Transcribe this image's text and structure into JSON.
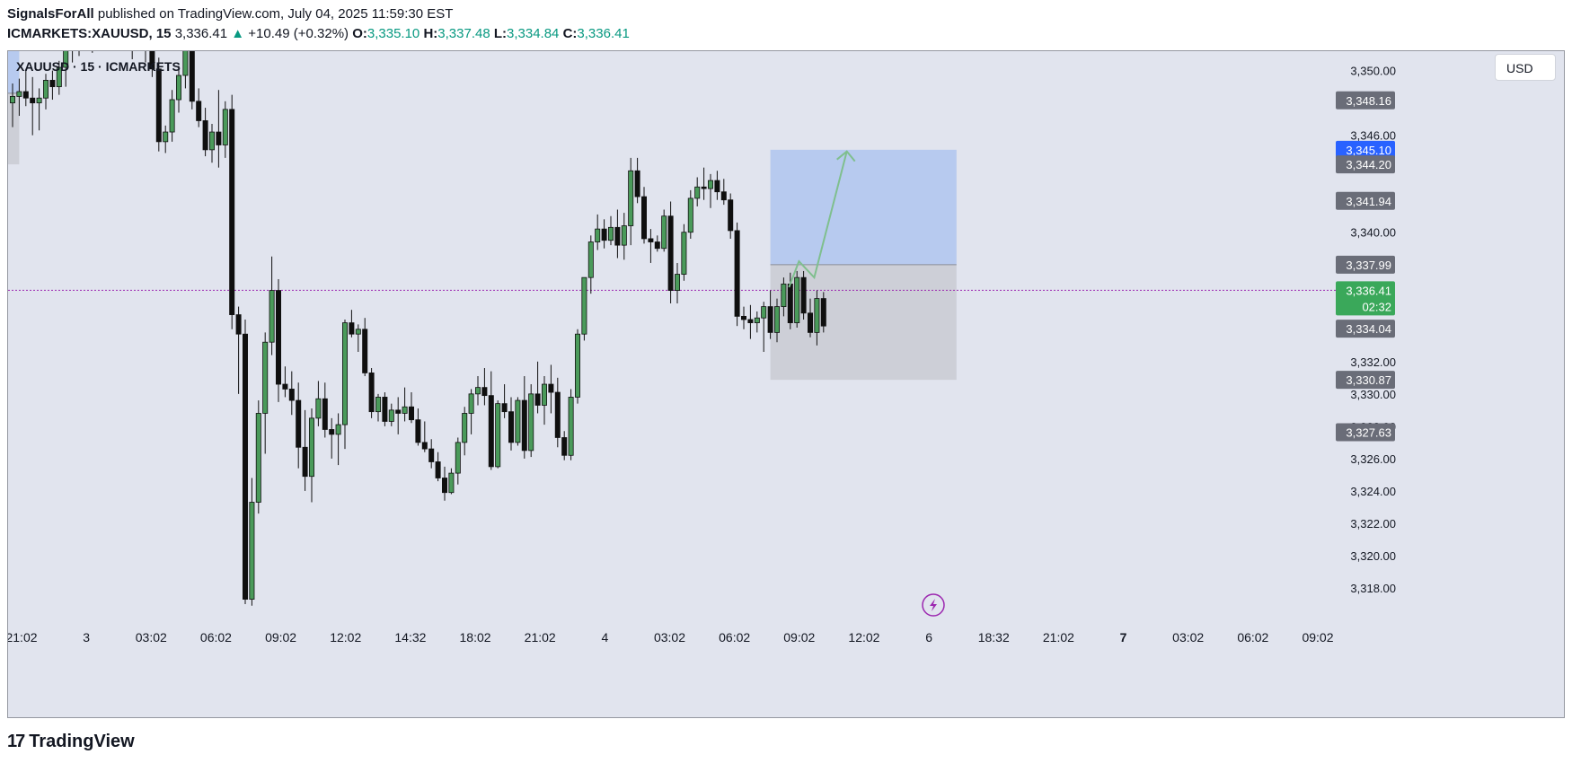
{
  "header": {
    "author": "SignalsForAll",
    "published": "published on TradingView.com, July 04, 2025 11:59:30 EST",
    "symbol": "ICMARKETS:XAUUSD, 15",
    "last": "3,336.41",
    "change_arrow": "▲",
    "change": "+10.49 (+0.32%)",
    "o_label": "O:",
    "o_value": "3,335.10",
    "h_label": "H:",
    "h_value": "3,337.48",
    "l_label": "L:",
    "l_value": "3,334.84",
    "c_label": "C:",
    "c_value": "3,336.41"
  },
  "legend": {
    "text": "XAUUSD · 15 · ICMARKETS"
  },
  "currency_button": "USD",
  "footer": {
    "logo_mark": "17",
    "logo_text": "TradingView"
  },
  "colors": {
    "bg": "#e1e4ee",
    "up_fill": "#4a9a5a",
    "down_fill": "#0f0f0f",
    "target_zone": "#b3c6ee",
    "stop_zone": "#c9cbd2",
    "projection": "#7fbf8e",
    "price_line": "#9c27b0",
    "label_grey": "#6a6d78",
    "label_blue": "#2962ff",
    "label_green": "#3aa85a"
  },
  "chart_data": {
    "type": "candlestick",
    "title": "XAUUSD · 15 · ICMARKETS",
    "ylim": [
      3316.0,
      3351.2
    ],
    "y_ticks": [
      "3,350.00",
      "3,346.00",
      "3,340.00",
      "3,332.00",
      "3,330.00",
      "3,328.00",
      "3,326.00",
      "3,324.00",
      "3,322.00",
      "3,320.00",
      "3,318.00"
    ],
    "x_ticks": [
      "21:02",
      "3",
      "03:02",
      "06:02",
      "09:02",
      "12:02",
      "14:32",
      "18:02",
      "21:02",
      "4",
      "03:02",
      "06:02",
      "09:02",
      "12:02",
      "6",
      "18:32",
      "21:02",
      "7",
      "03:02",
      "06:02",
      "09:02"
    ],
    "x_ticks_bold": [
      "7"
    ],
    "price_labels": [
      {
        "value": 3348.16,
        "text": "3,348.16",
        "style": "grey"
      },
      {
        "value": 3345.1,
        "text": "3,345.10",
        "style": "blue"
      },
      {
        "value": 3344.2,
        "text": "3,344.20",
        "style": "grey"
      },
      {
        "value": 3341.94,
        "text": "3,341.94",
        "style": "grey"
      },
      {
        "value": 3337.99,
        "text": "3,337.99",
        "style": "grey"
      },
      {
        "value": 3336.41,
        "text": "3,336.41",
        "sub": "02:32",
        "style": "green"
      },
      {
        "value": 3334.04,
        "text": "3,334.04",
        "style": "grey"
      },
      {
        "value": 3330.87,
        "text": "3,330.87",
        "style": "grey"
      },
      {
        "value": 3327.63,
        "text": "3,327.63",
        "style": "grey"
      }
    ],
    "current_price": 3336.41,
    "positions": [
      {
        "kind": "long",
        "entry": 3337.99,
        "target": 3345.1,
        "stop": 3330.87,
        "start_bar": 114,
        "end_bar": 142
      },
      {
        "kind": "long",
        "entry": 3348.6,
        "target": 3353.5,
        "stop": 3344.2,
        "start_bar": -9,
        "end_bar": 1
      }
    ],
    "projection_path": [
      [
        116.8,
        3336.6
      ],
      [
        118.3,
        3338.2
      ],
      [
        120.6,
        3337.2
      ],
      [
        125.5,
        3345.0
      ]
    ],
    "candles": [
      [
        3348.0,
        3349.2,
        3346.5,
        3348.4
      ],
      [
        3348.4,
        3349.5,
        3347.2,
        3348.7
      ],
      [
        3348.7,
        3350.1,
        3347.8,
        3348.3
      ],
      [
        3348.3,
        3349.6,
        3346.0,
        3348.0
      ],
      [
        3348.0,
        3348.9,
        3346.3,
        3348.3
      ],
      [
        3348.3,
        3349.8,
        3347.6,
        3349.4
      ],
      [
        3349.4,
        3350.0,
        3348.2,
        3349.0
      ],
      [
        3349.0,
        3350.6,
        3348.5,
        3350.2
      ],
      [
        3350.2,
        3351.6,
        3349.0,
        3351.4
      ],
      [
        3351.4,
        3352.4,
        3350.5,
        3351.8
      ],
      [
        3351.8,
        3352.6,
        3350.9,
        3352.2
      ],
      [
        3352.2,
        3353.4,
        3351.4,
        3352.0
      ],
      [
        3352.0,
        3352.8,
        3351.1,
        3352.6
      ],
      [
        3352.6,
        3353.6,
        3351.9,
        3352.3
      ],
      [
        3352.3,
        3353.0,
        3351.2,
        3352.9
      ],
      [
        3352.9,
        3353.7,
        3352.0,
        3352.4
      ],
      [
        3352.4,
        3353.2,
        3351.5,
        3352.7
      ],
      [
        3352.7,
        3353.6,
        3351.8,
        3352.1
      ],
      [
        3352.1,
        3352.8,
        3350.7,
        3352.5
      ],
      [
        3352.5,
        3353.4,
        3351.6,
        3352.0
      ],
      [
        3352.0,
        3352.6,
        3350.5,
        3351.3
      ],
      [
        3351.3,
        3351.9,
        3349.6,
        3350.1
      ],
      [
        3350.1,
        3350.8,
        3345.0,
        3345.6
      ],
      [
        3345.6,
        3346.6,
        3344.9,
        3346.2
      ],
      [
        3346.2,
        3348.8,
        3345.6,
        3348.2
      ],
      [
        3348.2,
        3350.3,
        3347.4,
        3349.7
      ],
      [
        3349.7,
        3352.4,
        3348.9,
        3351.6
      ],
      [
        3351.6,
        3352.4,
        3347.6,
        3348.1
      ],
      [
        3348.1,
        3348.9,
        3346.5,
        3346.9
      ],
      [
        3346.9,
        3347.7,
        3344.7,
        3345.1
      ],
      [
        3345.1,
        3346.7,
        3344.3,
        3346.2
      ],
      [
        3346.2,
        3348.8,
        3344.0,
        3345.4
      ],
      [
        3345.4,
        3348.1,
        3344.6,
        3347.6
      ],
      [
        3347.6,
        3348.5,
        3334.0,
        3334.9
      ],
      [
        3334.9,
        3335.4,
        3330.0,
        3333.7
      ],
      [
        3333.7,
        3334.6,
        3317.0,
        3317.3
      ],
      [
        3317.3,
        3324.8,
        3316.9,
        3323.3
      ],
      [
        3323.3,
        3329.6,
        3322.6,
        3328.8
      ],
      [
        3328.8,
        3333.8,
        3326.3,
        3333.2
      ],
      [
        3333.2,
        3338.5,
        3332.4,
        3336.4
      ],
      [
        3336.4,
        3337.1,
        3329.5,
        3330.6
      ],
      [
        3330.6,
        3331.7,
        3329.8,
        3330.3
      ],
      [
        3330.3,
        3331.4,
        3328.7,
        3329.6
      ],
      [
        3329.6,
        3330.7,
        3325.4,
        3326.7
      ],
      [
        3326.7,
        3329.0,
        3324.0,
        3324.9
      ],
      [
        3324.9,
        3329.1,
        3323.3,
        3328.5
      ],
      [
        3328.5,
        3330.8,
        3328.0,
        3329.7
      ],
      [
        3329.7,
        3330.7,
        3327.3,
        3327.8
      ],
      [
        3327.8,
        3328.5,
        3326.0,
        3327.5
      ],
      [
        3327.5,
        3328.8,
        3325.6,
        3328.1
      ],
      [
        3328.1,
        3334.6,
        3326.6,
        3334.4
      ],
      [
        3334.4,
        3335.2,
        3333.5,
        3333.7
      ],
      [
        3333.7,
        3334.3,
        3332.6,
        3334.0
      ],
      [
        3334.0,
        3334.7,
        3331.1,
        3331.3
      ],
      [
        3331.3,
        3331.6,
        3328.5,
        3328.9
      ],
      [
        3328.9,
        3330.0,
        3328.3,
        3329.8
      ],
      [
        3329.8,
        3330.1,
        3328.0,
        3328.3
      ],
      [
        3328.3,
        3329.4,
        3328.0,
        3329.0
      ],
      [
        3329.0,
        3329.8,
        3327.5,
        3328.8
      ],
      [
        3328.8,
        3330.4,
        3328.3,
        3329.2
      ],
      [
        3329.2,
        3330.1,
        3328.2,
        3328.4
      ],
      [
        3328.4,
        3329.1,
        3326.8,
        3327.0
      ],
      [
        3327.0,
        3328.3,
        3326.4,
        3326.6
      ],
      [
        3326.6,
        3327.2,
        3325.4,
        3325.8
      ],
      [
        3325.8,
        3326.4,
        3324.6,
        3324.8
      ],
      [
        3324.8,
        3325.5,
        3323.4,
        3323.9
      ],
      [
        3323.9,
        3325.4,
        3323.8,
        3325.1
      ],
      [
        3325.1,
        3327.3,
        3324.4,
        3327.0
      ],
      [
        3327.0,
        3329.2,
        3326.2,
        3328.8
      ],
      [
        3328.8,
        3330.3,
        3327.5,
        3330.0
      ],
      [
        3330.0,
        3331.1,
        3329.3,
        3330.4
      ],
      [
        3330.4,
        3331.6,
        3329.3,
        3329.9
      ],
      [
        3329.9,
        3331.4,
        3325.3,
        3325.5
      ],
      [
        3325.5,
        3329.6,
        3325.4,
        3329.4
      ],
      [
        3329.4,
        3330.6,
        3328.5,
        3328.9
      ],
      [
        3328.9,
        3329.8,
        3326.5,
        3327.0
      ],
      [
        3327.0,
        3329.8,
        3326.8,
        3329.6
      ],
      [
        3329.6,
        3331.1,
        3326.0,
        3326.5
      ],
      [
        3326.5,
        3330.6,
        3326.1,
        3330.0
      ],
      [
        3330.0,
        3332.0,
        3328.8,
        3329.3
      ],
      [
        3329.3,
        3331.1,
        3328.1,
        3330.6
      ],
      [
        3330.6,
        3331.8,
        3328.8,
        3330.1
      ],
      [
        3330.1,
        3331.0,
        3326.7,
        3327.3
      ],
      [
        3327.3,
        3327.7,
        3325.9,
        3326.2
      ],
      [
        3326.2,
        3330.3,
        3325.9,
        3329.8
      ],
      [
        3329.8,
        3334.0,
        3329.4,
        3333.7
      ],
      [
        3333.7,
        3337.0,
        3333.3,
        3337.2
      ],
      [
        3337.2,
        3339.8,
        3336.2,
        3339.4
      ],
      [
        3339.4,
        3341.1,
        3338.9,
        3340.2
      ],
      [
        3340.2,
        3340.8,
        3339.0,
        3339.5
      ],
      [
        3339.5,
        3341.0,
        3339.2,
        3340.3
      ],
      [
        3340.3,
        3341.4,
        3338.4,
        3339.2
      ],
      [
        3339.2,
        3341.2,
        3338.3,
        3340.4
      ],
      [
        3340.4,
        3344.6,
        3339.2,
        3343.8
      ],
      [
        3343.8,
        3344.6,
        3341.8,
        3342.2
      ],
      [
        3342.2,
        3342.8,
        3339.3,
        3339.6
      ],
      [
        3339.6,
        3340.2,
        3338.1,
        3339.4
      ],
      [
        3339.4,
        3339.8,
        3338.8,
        3339.0
      ],
      [
        3339.0,
        3341.4,
        3338.8,
        3341.0
      ],
      [
        3341.0,
        3341.9,
        3335.6,
        3336.4
      ],
      [
        3336.4,
        3338.1,
        3335.6,
        3337.4
      ],
      [
        3337.4,
        3340.5,
        3337.0,
        3340.0
      ],
      [
        3340.0,
        3342.6,
        3339.6,
        3342.1
      ],
      [
        3342.1,
        3343.4,
        3341.6,
        3342.8
      ],
      [
        3342.8,
        3344.0,
        3342.0,
        3342.7
      ],
      [
        3342.7,
        3343.6,
        3341.5,
        3343.2
      ],
      [
        3343.2,
        3343.8,
        3342.0,
        3342.5
      ],
      [
        3342.5,
        3343.3,
        3341.7,
        3342.0
      ],
      [
        3342.0,
        3342.4,
        3339.6,
        3340.1
      ],
      [
        3340.1,
        3340.6,
        3334.2,
        3334.8
      ],
      [
        3334.8,
        3335.4,
        3334.0,
        3334.6
      ],
      [
        3334.6,
        3335.5,
        3333.4,
        3334.4
      ],
      [
        3334.4,
        3335.1,
        3333.8,
        3334.7
      ],
      [
        3334.7,
        3335.7,
        3332.6,
        3335.4
      ],
      [
        3335.4,
        3336.4,
        3333.4,
        3333.8
      ],
      [
        3333.8,
        3335.9,
        3333.2,
        3335.4
      ],
      [
        3335.4,
        3337.2,
        3334.8,
        3336.8
      ],
      [
        3336.8,
        3337.5,
        3334.0,
        3334.4
      ],
      [
        3334.4,
        3337.6,
        3334.1,
        3337.2
      ],
      [
        3337.2,
        3337.6,
        3334.6,
        3335.0
      ],
      [
        3335.0,
        3335.9,
        3333.5,
        3333.8
      ],
      [
        3333.8,
        3336.4,
        3333.0,
        3335.9
      ],
      [
        3335.9,
        3336.3,
        3333.8,
        3334.2
      ]
    ]
  }
}
